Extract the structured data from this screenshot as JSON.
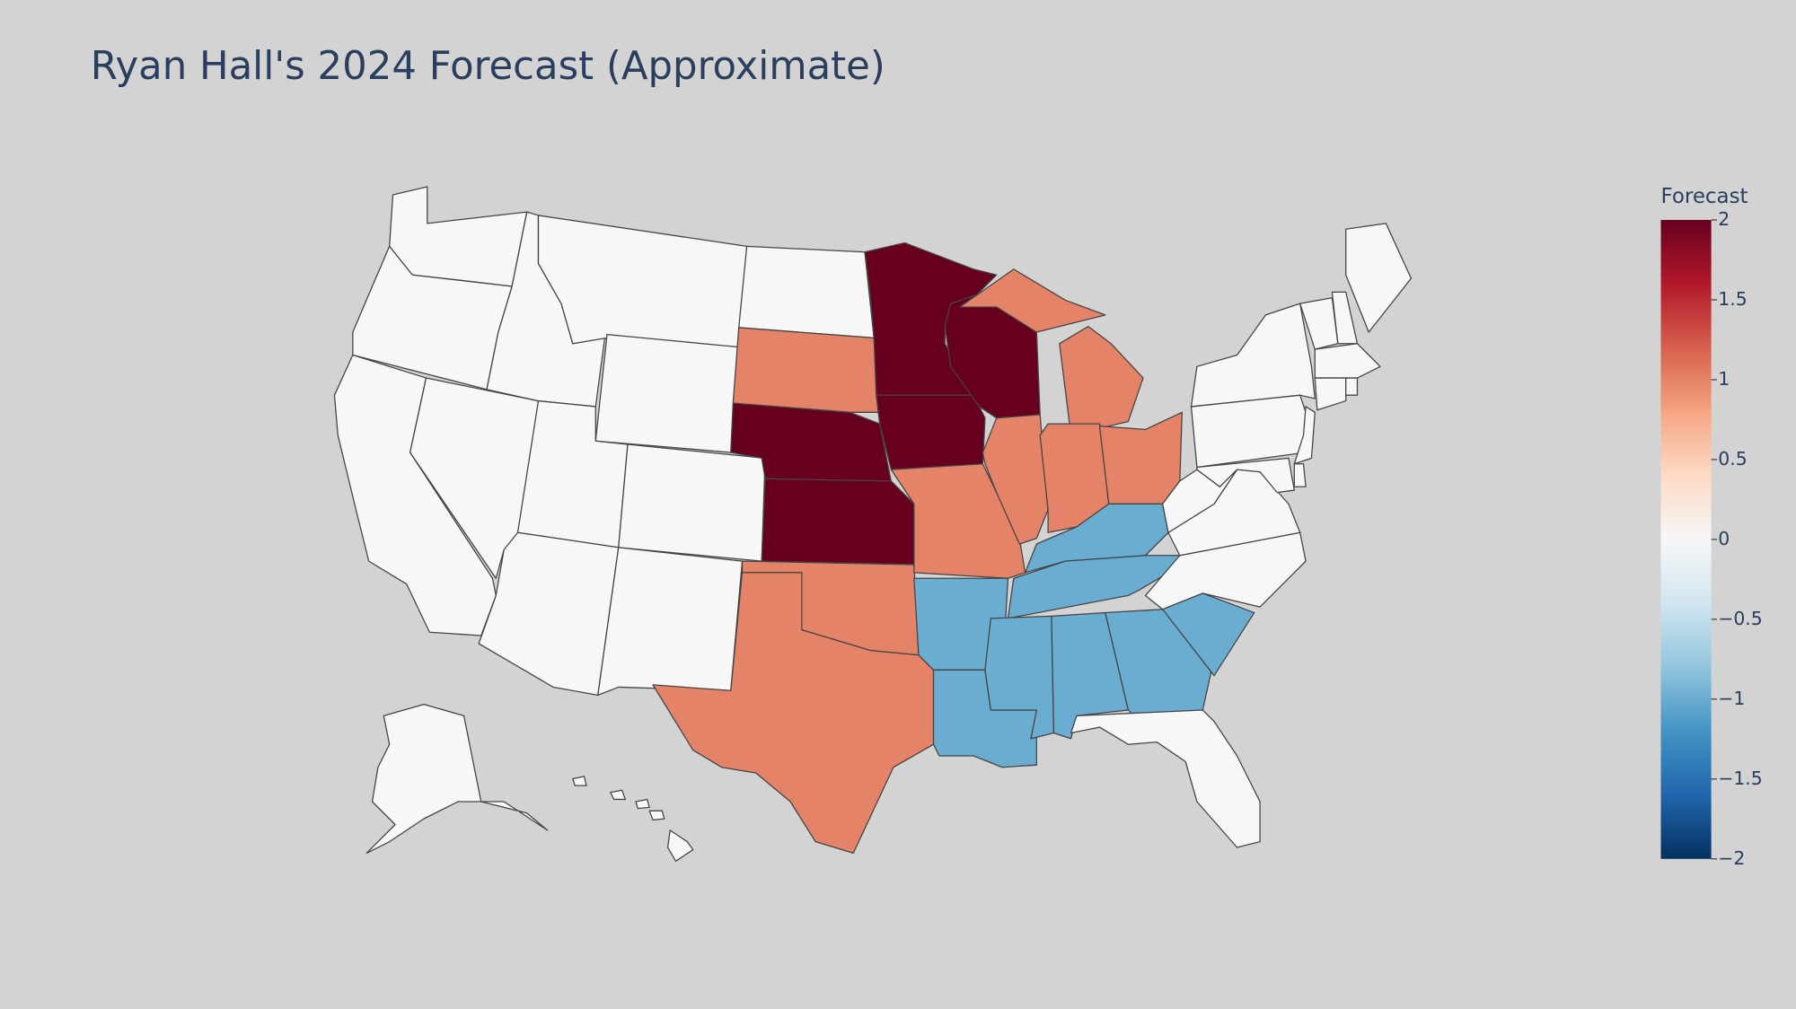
{
  "chart_data": {
    "type": "choropleth",
    "title": "Ryan Hall's 2024 Forecast (Approximate)",
    "values": [
      0,
      0,
      0,
      0,
      0,
      0,
      0,
      0,
      0,
      0,
      0,
      0,
      1,
      2,
      2,
      1,
      1,
      2,
      2,
      1,
      2,
      1,
      1,
      1,
      1,
      -1,
      -1,
      -1,
      -1,
      -1,
      -1,
      -1,
      -1,
      0,
      0,
      0,
      0,
      0,
      0,
      0,
      0,
      0,
      0,
      0,
      0,
      0,
      0,
      0,
      0,
      0
    ],
    "colorbar": {
      "title": "Forecast",
      "range": [
        -2,
        2
      ],
      "ticks": [
        2,
        1.5,
        1,
        0.5,
        0,
        {
          "value": -0.5,
          "label": "−0.5"
        },
        {
          "value": -1,
          "label": "−1"
        },
        {
          "value": -1.5,
          "label": "−1.5"
        },
        {
          "value": -2,
          "label": "−2"
        }
      ]
    },
    "colorscale": [
      "#053061",
      "#2166ac",
      "#4393c3",
      "#92c5de",
      "#d1e5f0",
      "#f7f7f7",
      "#fddbc7",
      "#f4a582",
      "#d6604d",
      "#b2182b",
      "#67001f"
    ]
  }
}
